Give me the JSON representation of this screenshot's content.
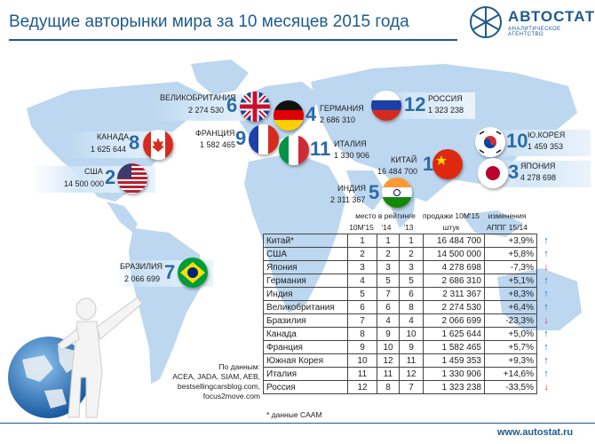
{
  "title": "Ведущие авторынки мира за 10 месяцев 2015 года",
  "logo": {
    "name": "АВТОСТАТ",
    "subtitle": "АНАЛИТИЧЕСКОЕ АГЕНТСТВО",
    "icon": "snowflake-logo-icon"
  },
  "colors": {
    "brand": "#1e5a8c",
    "map": "#bcd7ef",
    "up": "#1e6fd0",
    "down": "#e0342a"
  },
  "map_labels": [
    {
      "id": "uk",
      "name": "ВЕЛИКОБРИТАНИЯ",
      "sales": "2 274 530",
      "rank": "6"
    },
    {
      "id": "germany",
      "name": "ГЕРМАНИЯ",
      "sales": "2 686 310",
      "rank": "4"
    },
    {
      "id": "russia",
      "name": "РОССИЯ",
      "sales": "1 323 238",
      "rank": "12"
    },
    {
      "id": "canada",
      "name": "КАНАДА",
      "sales": "1 625 644",
      "rank": "8"
    },
    {
      "id": "france",
      "name": "ФРАНЦИЯ",
      "sales": "1 582 465",
      "rank": "9"
    },
    {
      "id": "italy",
      "name": "ИТАЛИЯ",
      "sales": "1 330 906",
      "rank": "11"
    },
    {
      "id": "korea",
      "name": "Ю.КОРЕЯ",
      "sales": "1 459 353",
      "rank": "10"
    },
    {
      "id": "usa",
      "name": "США",
      "sales": "14 500 000",
      "rank": "2"
    },
    {
      "id": "china",
      "name": "КИТАЙ",
      "sales": "16 484 700",
      "rank": "1"
    },
    {
      "id": "japan",
      "name": "ЯПОНИЯ",
      "sales": "4 278 698",
      "rank": "3"
    },
    {
      "id": "india",
      "name": "ИНДИЯ",
      "sales": "2 311 367",
      "rank": "5"
    },
    {
      "id": "brazil",
      "name": "БРАЗИЛИЯ",
      "sales": "2 066 699",
      "rank": "7"
    }
  ],
  "table": {
    "header_rank": "место в рейтинге",
    "header_sales": "продажи 10М'15",
    "header_sales_unit": "штук",
    "header_change": "изменения",
    "header_change_unit": "АППГ 15/14",
    "sub_cols": [
      "10М'15",
      "'14",
      "'13"
    ],
    "rows": [
      {
        "country": "Китай*",
        "r15": "1",
        "r14": "1",
        "r13": "1",
        "sales": "16 484 700",
        "change": "+3,9%",
        "dir": "up"
      },
      {
        "country": "США",
        "r15": "2",
        "r14": "2",
        "r13": "2",
        "sales": "14 500 000",
        "change": "+5,8%",
        "dir": "up"
      },
      {
        "country": "Япония",
        "r15": "3",
        "r14": "3",
        "r13": "3",
        "sales": "4 278 698",
        "change": "-7,3%",
        "dir": "down"
      },
      {
        "country": "Германия",
        "r15": "4",
        "r14": "5",
        "r13": "5",
        "sales": "2 686 310",
        "change": "+5,1%",
        "dir": "up"
      },
      {
        "country": "Индия",
        "r15": "5",
        "r14": "7",
        "r13": "6",
        "sales": "2 311 367",
        "change": "+8,3%",
        "dir": "up"
      },
      {
        "country": "Великобритания",
        "r15": "6",
        "r14": "6",
        "r13": "8",
        "sales": "2 274 530",
        "change": "+6,4%",
        "dir": "up"
      },
      {
        "country": "Бразилия",
        "r15": "7",
        "r14": "4",
        "r13": "4",
        "sales": "2 066 699",
        "change": "-23,3%",
        "dir": "down"
      },
      {
        "country": "Канада",
        "r15": "8",
        "r14": "9",
        "r13": "10",
        "sales": "1 625 644",
        "change": "+5,0%",
        "dir": "up"
      },
      {
        "country": "Франция",
        "r15": "9",
        "r14": "10",
        "r13": "9",
        "sales": "1 582 465",
        "change": "+5,7%",
        "dir": "up"
      },
      {
        "country": "Южная Корея",
        "r15": "10",
        "r14": "12",
        "r13": "11",
        "sales": "1 459 353",
        "change": "+9,3%",
        "dir": "up"
      },
      {
        "country": "Италия",
        "r15": "11",
        "r14": "11",
        "r13": "12",
        "sales": "1 330 906",
        "change": "+14,6%",
        "dir": "up"
      },
      {
        "country": "Россия",
        "r15": "12",
        "r14": "8",
        "r13": "7",
        "sales": "1 323 238",
        "change": "-33,5%",
        "dir": "down"
      }
    ]
  },
  "source": {
    "lines": [
      "По данным:",
      "ACEA, JADA, SIAM, AEB,",
      "bestsellingcarsblog.com,",
      "focus2move.com"
    ]
  },
  "note": "* данные CAAM",
  "footer_url": "www.autostat.ru"
}
